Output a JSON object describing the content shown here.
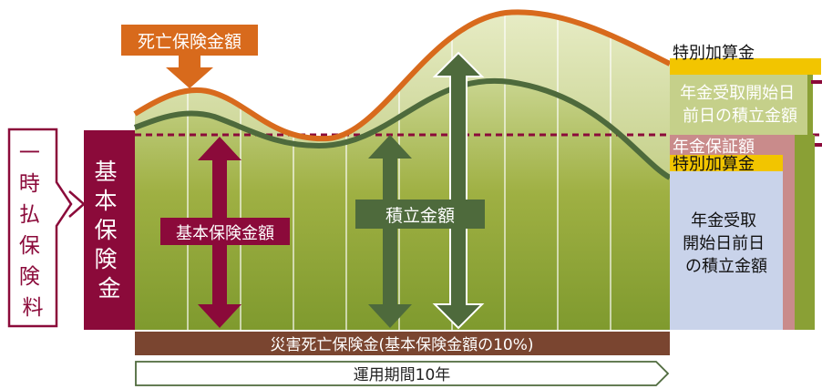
{
  "premium_label": "一時払保険料",
  "basic_insurance": "基本保険金",
  "death_benefit": "死亡保険金額",
  "basic_amount": "基本保険金額",
  "reserve_amount": "積立金額",
  "special_addition_top": "特別加算金",
  "annuity_reserve_top": [
    "年金受取開始日",
    "前日の積立金額"
  ],
  "guaranteed_annuity": "年金保証額",
  "special_addition_mid": "特別加算金",
  "annuity_reserve_bottom": [
    "年金受取",
    "開始日前日",
    "の積立金額"
  ],
  "disaster_benefit": "災害死亡保険金(基本保険金額の10%)",
  "period": "運用期間10年",
  "colors": {
    "maroon": "#8b0a3a",
    "orange": "#d86a1c",
    "olive": "#8aa035",
    "dark_green": "#4e6a3c",
    "yellow": "#f2c500",
    "pale_blue": "#c9d3ea",
    "rose": "#c98b8b",
    "brown": "#7a4530"
  }
}
